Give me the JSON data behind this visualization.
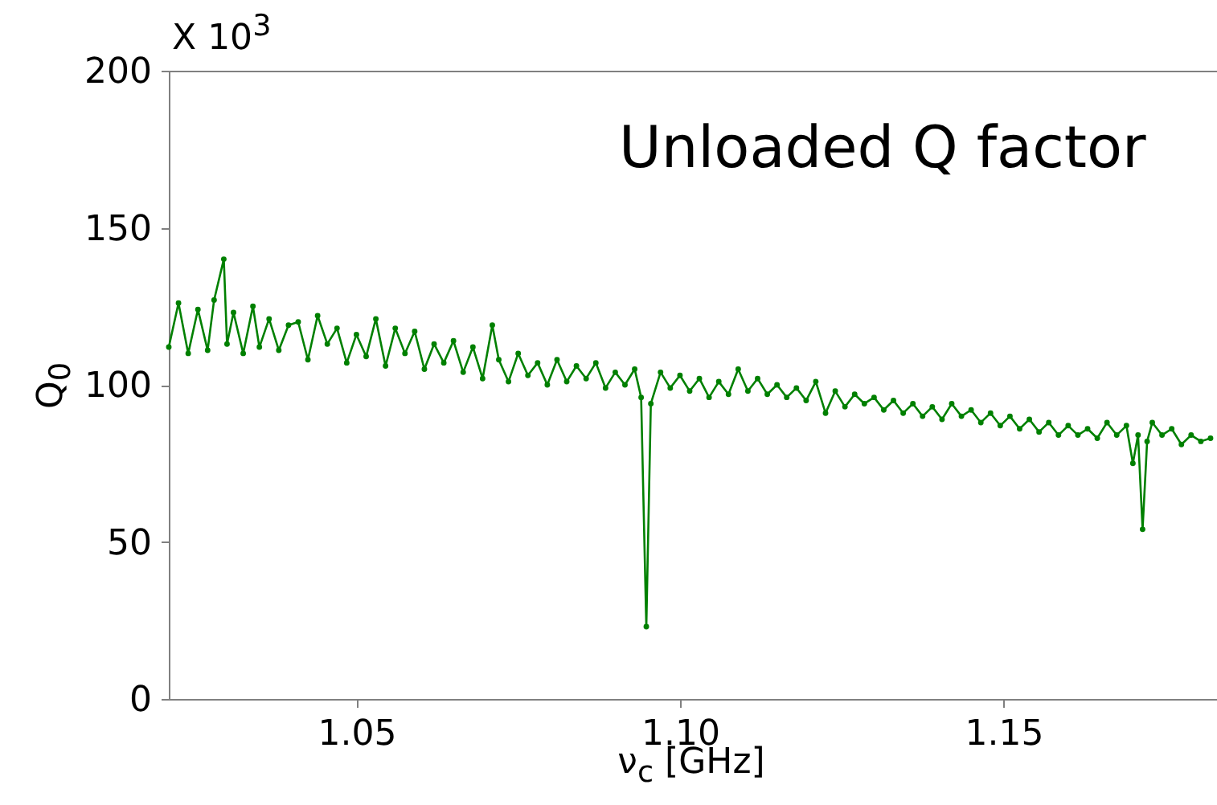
{
  "chart_data": {
    "type": "line",
    "xlabel": "ν$_{c}$ [GHz]",
    "ylabel": "Q$_{0}$",
    "annotations": [
      "X 10$^{3}$",
      "Unloaded Q factor"
    ],
    "xlim": [
      1.021,
      1.183
    ],
    "ylim": [
      0,
      200
    ],
    "xticks": [
      {
        "value": 1.05,
        "label": "1.05"
      },
      {
        "value": 1.1,
        "label": "1.10"
      },
      {
        "value": 1.15,
        "label": "1.15"
      }
    ],
    "yticks": [
      0,
      50,
      100,
      150,
      200
    ],
    "grid": false,
    "marker": "circle",
    "line_style": "solid",
    "x": [
      1.021,
      1.0225,
      1.024,
      1.0255,
      1.027,
      1.028,
      1.0295,
      1.03,
      1.031,
      1.0325,
      1.034,
      1.035,
      1.0365,
      1.038,
      1.0395,
      1.041,
      1.0425,
      1.044,
      1.0455,
      1.047,
      1.0485,
      1.05,
      1.0515,
      1.053,
      1.0545,
      1.056,
      1.0575,
      1.059,
      1.0605,
      1.062,
      1.0635,
      1.065,
      1.0665,
      1.068,
      1.0695,
      1.071,
      1.072,
      1.0735,
      1.075,
      1.0765,
      1.078,
      1.0795,
      1.081,
      1.0825,
      1.084,
      1.0855,
      1.087,
      1.0885,
      1.09,
      1.0915,
      1.093,
      1.094,
      1.0948,
      1.0955,
      1.097,
      1.0985,
      1.1,
      1.1015,
      1.103,
      1.1045,
      1.106,
      1.1075,
      1.109,
      1.1105,
      1.112,
      1.1135,
      1.115,
      1.1165,
      1.118,
      1.1195,
      1.121,
      1.1225,
      1.124,
      1.1255,
      1.127,
      1.1285,
      1.13,
      1.1315,
      1.133,
      1.1345,
      1.136,
      1.1375,
      1.139,
      1.1405,
      1.142,
      1.1435,
      1.145,
      1.1465,
      1.148,
      1.1495,
      1.151,
      1.1525,
      1.154,
      1.1555,
      1.157,
      1.1585,
      1.16,
      1.1615,
      1.163,
      1.1645,
      1.166,
      1.1675,
      1.169,
      1.17,
      1.1708,
      1.1715,
      1.1722,
      1.173,
      1.1745,
      1.176,
      1.1775,
      1.179,
      1.1805,
      1.182
    ],
    "series": [
      {
        "color": "#008000",
        "values": [
          112,
          126,
          110,
          124,
          111,
          127,
          140,
          113,
          123,
          110,
          125,
          112,
          121,
          111,
          119,
          120,
          108,
          122,
          113,
          118,
          107,
          116,
          109,
          121,
          106,
          118,
          110,
          117,
          105,
          113,
          107,
          114,
          104,
          112,
          102,
          119,
          108,
          101,
          110,
          103,
          107,
          100,
          108,
          101,
          106,
          102,
          107,
          99,
          104,
          100,
          105,
          96,
          23,
          94,
          104,
          99,
          103,
          98,
          102,
          96,
          101,
          97,
          105,
          98,
          102,
          97,
          100,
          96,
          99,
          95,
          101,
          91,
          98,
          93,
          97,
          94,
          96,
          92,
          95,
          91,
          94,
          90,
          93,
          89,
          94,
          90,
          92,
          88,
          91,
          87,
          90,
          86,
          89,
          85,
          88,
          84,
          87,
          84,
          86,
          83,
          88,
          84,
          87,
          75,
          84,
          54,
          82,
          88,
          84,
          86,
          81,
          84,
          82,
          83
        ]
      }
    ]
  }
}
